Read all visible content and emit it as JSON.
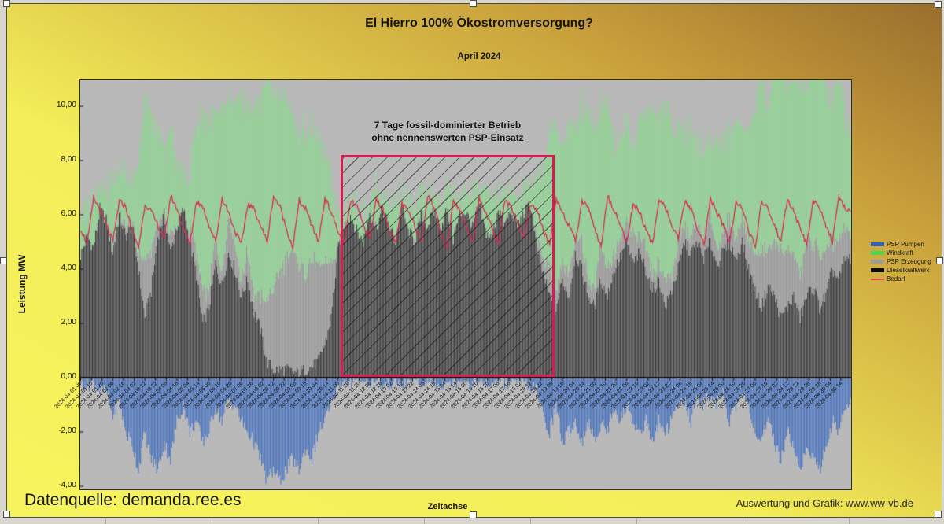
{
  "chart": {
    "title": "El Hierro 100% Ökostromversorgung?",
    "subtitle": "April 2024",
    "y_axis_title": "Leistung MW",
    "x_axis_title": "Zeitachse",
    "annotation_line1": "7 Tage fossil-dominierter Betrieb",
    "annotation_line2": "ohne nennenswerten PSP-Einsatz",
    "footer_left": "Datenquelle: demanda.ree.es",
    "footer_right": "Auswertung und Grafik: www.ww-vb.de",
    "legend": [
      {
        "label": "PSP Pumpen",
        "color": "#2f62b8",
        "shape": "box"
      },
      {
        "label": "Windkraft",
        "color": "#4fd44f",
        "shape": "box"
      },
      {
        "label": "PSP Erzeugung",
        "color": "#9b9b9b",
        "shape": "box"
      },
      {
        "label": "Dieselkraftwerk",
        "color": "#0a0a0a",
        "shape": "box"
      },
      {
        "label": "Bedarf",
        "color": "#dd4a4a",
        "shape": "line"
      }
    ],
    "colors": {
      "plot_background": "#b9b9b9",
      "diesel_bars": "#3b3b3b",
      "wind_bars": "#8fd792",
      "psp_gen_bars": "#9b9b9b",
      "psp_pump_bars": "#4a74c0",
      "bedarf_line": "#d62a50",
      "hatch_box_border": "#d81b53",
      "object_background_yellow": "#f6f45e",
      "object_background_brown": "#996e2d"
    }
  },
  "chart_data": {
    "type": "bar",
    "subtype": "stacked-hourly-bars-with-line",
    "unit": "MW",
    "title": "El Hierro 100% Ökostromversorgung?",
    "subtitle": "April 2024",
    "xlabel": "Zeitachse",
    "ylabel": "Leistung MW",
    "ylim": [
      -4.1,
      11.0
    ],
    "x_range": [
      "2024-04-01 00",
      "2024-04-30 24"
    ],
    "resolution_hours": 6,
    "y_ticks": [
      {
        "value": 10,
        "label": "10,00"
      },
      {
        "value": 8,
        "label": "8,00"
      },
      {
        "value": 6,
        "label": "6,00"
      },
      {
        "value": 4,
        "label": "4,00"
      },
      {
        "value": 2,
        "label": "2,00"
      },
      {
        "value": 0,
        "label": "0,00"
      },
      {
        "value": -2,
        "label": "-2,00"
      },
      {
        "value": -4,
        "label": "-4,00"
      }
    ],
    "x_tick_labels": [
      "2024-04-01 00",
      "2024-04-01 10",
      "2024-04-01 20",
      "2024-04-02 06",
      "2024-04-02 16",
      "2024-04-03 02",
      "2024-04-03 12",
      "2024-04-03 22",
      "2024-04-04 08",
      "2024-04-04 18",
      "2024-04-05 04",
      "2024-04-05 14",
      "2024-04-06 00",
      "2024-04-06 10",
      "2024-04-06 20",
      "2024-04-07 06",
      "2024-04-07 16",
      "2024-04-08 02",
      "2024-04-08 12",
      "2024-04-08 22",
      "2024-04-09 08",
      "2024-04-09 18",
      "2024-04-10 04",
      "2024-04-10 14",
      "2024-04-11 00",
      "2024-04-11 10",
      "2024-04-11 20",
      "2024-04-12 06",
      "2024-04-12 16",
      "2024-04-13 02",
      "2024-04-13 12",
      "2024-04-13 22",
      "2024-04-14 08",
      "2024-04-14 18",
      "2024-04-15 04",
      "2024-04-15 14",
      "2024-04-16 00",
      "2024-04-16 10",
      "2024-04-16 20",
      "2024-04-17 06",
      "2024-04-17 16",
      "2024-04-18 02",
      "2024-04-18 12",
      "2024-04-18 22",
      "2024-04-19 08",
      "2024-04-19 18",
      "2024-04-20 04",
      "2024-04-20 14",
      "2024-04-21 00",
      "2024-04-21 10",
      "2024-04-21 20",
      "2024-04-22 06",
      "2024-04-22 16",
      "2024-04-23 02",
      "2024-04-23 12",
      "2024-04-23 22",
      "2024-04-24 08",
      "2024-04-24 18",
      "2024-04-25 04",
      "2024-04-25 14",
      "2024-04-26 00",
      "2024-04-26 10",
      "2024-04-26 20",
      "2024-04-27 06",
      "2024-04-27 16",
      "2024-04-28 02",
      "2024-04-28 12",
      "2024-04-28 22",
      "2024-04-29 08",
      "2024-04-29 18",
      "2024-04-30 04",
      "2024-04-30 14"
    ],
    "annotation_box": {
      "x_start_hour": 246,
      "x_end_hour": 450,
      "y_top_mw": 8.2,
      "y_bottom_mw": 0
    },
    "series": [
      {
        "name": "Dieselkraftwerk",
        "values": [
          4.5,
          5.2,
          4.8,
          6.2,
          5.8,
          4.6,
          6.0,
          5.2,
          5.6,
          4.0,
          2.2,
          3.2,
          5.2,
          6.0,
          4.6,
          5.6,
          6.2,
          5.0,
          3.8,
          2.0,
          2.6,
          4.2,
          3.4,
          4.6,
          4.0,
          3.0,
          3.6,
          2.4,
          1.8,
          0.6,
          0.3,
          0.3,
          0.3,
          0.2,
          0.2,
          0.3,
          0.4,
          0.6,
          1.2,
          2.2,
          4.6,
          5.6,
          6.0,
          5.4,
          5.0,
          6.1,
          5.5,
          6.2,
          5.6,
          5.0,
          6.3,
          5.4,
          5.0,
          6.0,
          5.6,
          6.1,
          5.5,
          6.2,
          5.1,
          6.0,
          6.1,
          5.5,
          6.4,
          5.4,
          5.1,
          6.3,
          5.6,
          6.2,
          5.6,
          6.0,
          6.4,
          4.8,
          3.8,
          3.0,
          2.6,
          3.6,
          3.0,
          4.6,
          4.0,
          3.0,
          2.6,
          3.6,
          3.0,
          4.0,
          4.4,
          5.0,
          4.2,
          4.6,
          4.0,
          3.2,
          3.6,
          2.6,
          3.2,
          4.0,
          5.0,
          4.6,
          5.0,
          4.4,
          5.0,
          4.2,
          4.6,
          5.0,
          4.4,
          5.0,
          4.0,
          3.2,
          2.6,
          3.4,
          3.0,
          2.2,
          2.6,
          3.0,
          2.2,
          3.0,
          3.4,
          2.6,
          3.0,
          4.0,
          3.6,
          4.4
        ]
      },
      {
        "name": "PSP Erzeugung",
        "values": [
          0,
          0,
          0,
          0,
          0,
          0.3,
          0,
          0.4,
          0,
          0.6,
          2.0,
          1.4,
          0.5,
          0,
          0.6,
          0,
          0,
          0.4,
          0.8,
          1.2,
          0.6,
          1.0,
          0.5,
          1.4,
          1.0,
          0.6,
          1.0,
          0.6,
          1.2,
          2.2,
          3.0,
          3.6,
          4.0,
          4.4,
          4.0,
          3.6,
          4.0,
          3.4,
          3.0,
          2.0,
          0.1,
          0,
          0,
          0,
          0,
          0,
          0.1,
          0,
          0,
          0.1,
          0,
          0,
          0.1,
          0,
          0,
          0.1,
          0,
          0,
          0.1,
          0,
          0,
          0.1,
          0,
          0,
          0.1,
          0,
          0.1,
          0,
          0,
          0.1,
          0,
          0.3,
          0.6,
          1.0,
          0.6,
          0.6,
          1.0,
          0.6,
          1.0,
          0.6,
          0.6,
          1.4,
          1.0,
          0.6,
          0.6,
          0.6,
          1.0,
          0.6,
          1.0,
          0.6,
          0.6,
          1.0,
          0.6,
          1.0,
          0.6,
          0.6,
          0.6,
          0.6,
          1.0,
          0.6,
          0.6,
          1.0,
          0.6,
          1.0,
          1.0,
          1.4,
          2.0,
          1.4,
          2.0,
          2.4,
          2.0,
          1.6,
          1.6,
          2.0,
          1.6,
          2.0,
          1.6,
          1.0,
          1.4,
          1.0
        ]
      },
      {
        "name": "Windkraft",
        "values": [
          1.5,
          1.0,
          2.0,
          1.0,
          1.2,
          2.4,
          1.6,
          2.2,
          1.6,
          3.2,
          6.0,
          4.8,
          3.4,
          2.4,
          4.0,
          2.2,
          1.2,
          2.2,
          4.6,
          6.6,
          6.2,
          4.4,
          6.0,
          4.2,
          5.0,
          6.6,
          5.4,
          7.0,
          7.2,
          8.4,
          7.4,
          6.4,
          6.0,
          5.0,
          4.6,
          5.4,
          5.0,
          4.6,
          4.0,
          3.0,
          1.4,
          0.8,
          0.6,
          1.0,
          1.0,
          0.6,
          1.4,
          0.6,
          0.8,
          1.4,
          0.6,
          1.0,
          1.0,
          0.6,
          1.2,
          0.8,
          0.6,
          1.0,
          1.4,
          0.6,
          0.8,
          1.2,
          0.6,
          1.4,
          1.4,
          0.6,
          1.0,
          0.8,
          0.6,
          1.0,
          0.6,
          2.0,
          3.4,
          5.0,
          6.0,
          4.4,
          5.4,
          4.0,
          5.0,
          6.4,
          6.0,
          5.0,
          6.4,
          4.4,
          3.4,
          4.0,
          3.0,
          4.4,
          5.0,
          6.0,
          5.4,
          6.4,
          5.4,
          4.4,
          3.4,
          4.0,
          3.0,
          3.4,
          2.6,
          4.0,
          3.4,
          3.0,
          4.4,
          3.4,
          4.0,
          5.4,
          6.4,
          5.4,
          6.4,
          7.0,
          6.0,
          6.4,
          7.0,
          6.0,
          6.4,
          7.4,
          6.0,
          5.0,
          6.4,
          4.0
        ]
      },
      {
        "name": "PSP Pumpen",
        "values": [
          -0.1,
          -0.3,
          -0.1,
          -0.5,
          -0.5,
          -1.4,
          -0.8,
          -2.0,
          -2.4,
          -3.4,
          -2.0,
          -3.0,
          -3.4,
          -2.4,
          -3.0,
          -1.6,
          -1.0,
          -2.0,
          -1.6,
          -2.4,
          -2.0,
          -1.0,
          -1.6,
          -0.8,
          -1.0,
          -1.6,
          -2.0,
          -2.4,
          -3.0,
          -3.8,
          -3.4,
          -3.8,
          -3.4,
          -3.0,
          -3.4,
          -2.6,
          -3.0,
          -2.0,
          -1.6,
          -1.0,
          -0.3,
          -0.1,
          -0.2,
          -0.1,
          -0.1,
          -0.2,
          -0.1,
          -0.3,
          -0.2,
          -0.1,
          -0.3,
          -0.1,
          -0.1,
          -0.3,
          -0.1,
          -0.2,
          -0.3,
          -0.1,
          -0.2,
          -0.1,
          -0.1,
          -0.2,
          -0.1,
          -0.3,
          -0.2,
          -0.1,
          -0.2,
          -0.1,
          -0.1,
          -0.2,
          -0.3,
          -0.5,
          -1.4,
          -2.0,
          -1.0,
          -2.4,
          -2.0,
          -1.6,
          -2.4,
          -1.6,
          -2.4,
          -1.6,
          -2.0,
          -1.0,
          -1.6,
          -1.0,
          -1.6,
          -2.0,
          -1.6,
          -2.4,
          -1.6,
          -2.0,
          -1.6,
          -1.0,
          -0.8,
          -1.6,
          -0.6,
          -1.0,
          -0.6,
          -1.0,
          -0.6,
          -1.6,
          -1.0,
          -0.6,
          -1.0,
          -2.0,
          -2.4,
          -1.6,
          -2.4,
          -3.0,
          -2.0,
          -2.4,
          -3.4,
          -2.6,
          -3.0,
          -3.4,
          -2.6,
          -1.6,
          -2.0,
          -1.0
        ]
      },
      {
        "name": "Bedarf",
        "values": [
          5.5,
          4.9,
          6.6,
          6.2,
          5.6,
          5.0,
          6.5,
          6.3,
          5.4,
          4.8,
          6.4,
          6.1,
          5.6,
          5.1,
          6.7,
          6.2,
          5.5,
          4.9,
          6.5,
          6.3,
          5.6,
          5.0,
          6.6,
          6.1,
          5.4,
          4.9,
          6.4,
          6.2,
          5.6,
          5.0,
          6.7,
          6.3,
          5.5,
          4.8,
          6.5,
          6.2,
          5.6,
          5.0,
          6.6,
          6.1,
          5.4,
          4.9,
          6.5,
          6.3,
          5.6,
          5.1,
          6.6,
          6.2,
          5.5,
          4.9,
          6.4,
          6.1,
          5.6,
          5.0,
          6.7,
          6.3,
          5.4,
          4.8,
          6.5,
          6.2,
          5.6,
          5.0,
          6.6,
          6.1,
          5.5,
          4.9,
          6.5,
          6.3,
          5.6,
          5.1,
          6.4,
          6.2,
          5.4,
          4.9,
          6.6,
          6.1,
          5.6,
          5.0,
          6.5,
          6.3,
          5.5,
          4.8,
          6.7,
          6.2,
          5.6,
          5.0,
          6.4,
          6.1,
          5.4,
          4.9,
          6.6,
          6.3,
          5.6,
          5.1,
          6.5,
          6.2,
          5.5,
          4.9,
          6.6,
          6.1,
          5.6,
          5.0,
          6.4,
          6.3,
          5.4,
          4.8,
          6.5,
          6.2,
          5.6,
          5.0,
          6.6,
          6.1,
          5.5,
          4.9,
          6.5,
          6.3,
          5.6,
          5.0,
          6.6,
          6.2
        ]
      }
    ]
  }
}
